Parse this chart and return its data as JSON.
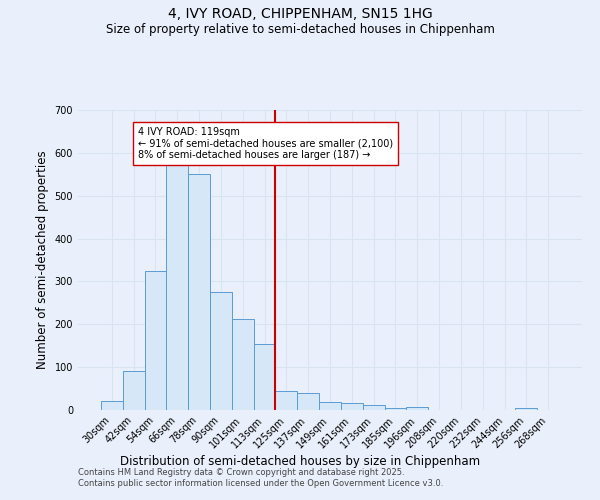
{
  "title": "4, IVY ROAD, CHIPPENHAM, SN15 1HG",
  "subtitle": "Size of property relative to semi-detached houses in Chippenham",
  "xlabel": "Distribution of semi-detached houses by size in Chippenham",
  "ylabel": "Number of semi-detached properties",
  "categories": [
    "30sqm",
    "42sqm",
    "54sqm",
    "66sqm",
    "78sqm",
    "90sqm",
    "101sqm",
    "113sqm",
    "125sqm",
    "137sqm",
    "149sqm",
    "161sqm",
    "173sqm",
    "185sqm",
    "196sqm",
    "208sqm",
    "220sqm",
    "232sqm",
    "244sqm",
    "256sqm",
    "268sqm"
  ],
  "values": [
    20,
    90,
    325,
    575,
    550,
    275,
    212,
    155,
    45,
    40,
    18,
    16,
    12,
    5,
    8,
    0,
    0,
    0,
    0,
    5,
    0
  ],
  "bar_color": "#d6e8f7",
  "bar_edge_color": "#5b9bd5",
  "vline_pos": 7.5,
  "vline_color": "#cc0000",
  "annotation_line1": "4 IVY ROAD: 119sqm",
  "annotation_line2": "← 91% of semi-detached houses are smaller (2,100)",
  "annotation_line3": "8% of semi-detached houses are larger (187) →",
  "annotation_box_color": "#ffffff",
  "annotation_box_edge": "#cc0000",
  "ylim": [
    0,
    700
  ],
  "yticks": [
    0,
    100,
    200,
    300,
    400,
    500,
    600,
    700
  ],
  "background_color": "#eaf0fb",
  "grid_color": "#d8e4f0",
  "footer_line1": "Contains HM Land Registry data © Crown copyright and database right 2025.",
  "footer_line2": "Contains public sector information licensed under the Open Government Licence v3.0.",
  "title_fontsize": 10,
  "subtitle_fontsize": 8.5,
  "axis_label_fontsize": 8.5,
  "tick_fontsize": 7,
  "annotation_fontsize": 7,
  "footer_fontsize": 6
}
